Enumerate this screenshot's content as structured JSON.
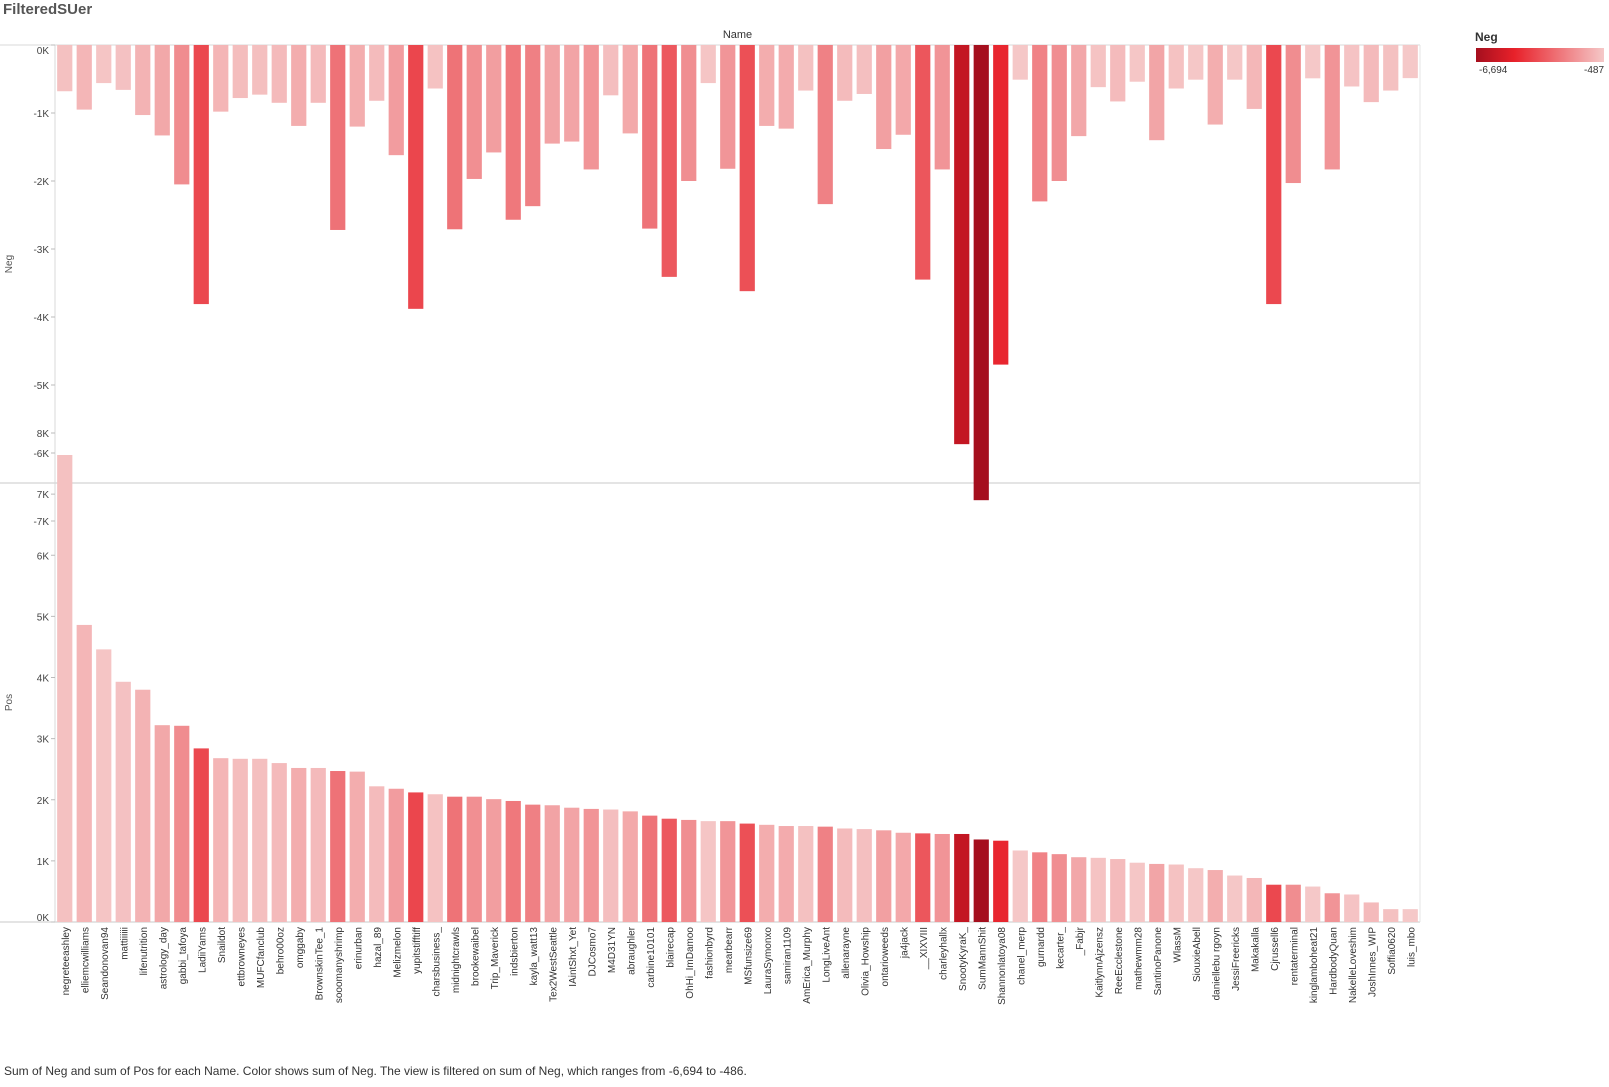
{
  "title": "FilteredSUer",
  "caption": "Sum of Neg and sum of Pos for each Name.  Color shows sum of Neg. The view is filtered on sum of Neg, which ranges from -6,694 to -486.",
  "legend": {
    "title": "Neg",
    "min_label": "-6,694",
    "max_label": "-487",
    "color_min": "#a50f1e",
    "color_mid": "#e8212a",
    "color_max": "#f5c8c8"
  },
  "chart_data": {
    "type": "bar",
    "column_header": "Name",
    "color_by": "Neg",
    "color_range": [
      -6694,
      -487
    ],
    "categories": [
      "negreteeashley",
      "elliemcwilliams",
      "Seandonovan94",
      "mattiiiiii",
      "lifenutrition",
      "astrology_day",
      "gabbi_tafoya",
      "LadiiYams",
      "Snaildot",
      "ettbrowneyes",
      "MUFCfanclub",
      "behro00oz",
      "omggaby",
      "BrownskinTee_1",
      "sooomanyshrimp",
      "erinurban",
      "hazal_89",
      "Melizmelon",
      "yupitstifftiff",
      "charsbusiness_",
      "midnightcrawls",
      "brookewaibel",
      "Trip_Maverick",
      "indsbierton",
      "kayla_watt13",
      "Tex2WestSeattle",
      "IAintShxt_Yet",
      "DJCosmo7",
      "M4D31YN",
      "abraughler",
      "carbine10101",
      "blairecap",
      "OhHi_ImDamoo",
      "fashionbyrd",
      "mearbearr",
      "MSfunsize69",
      "LauraSymonxo",
      "samiran1109",
      "AmErica_Murphy",
      "LongLiveAnt",
      "allenarayne",
      "Olivia_Howship",
      "ontarioweeds",
      "ja4jack",
      "__XIXVIII",
      "charleyhallx",
      "SnootyKyraK_",
      "SumMannShit",
      "Shannonlatoya08",
      "chanel_merp",
      "gurnardd",
      "kecarter_",
      "_Fabjr",
      "KaitlynnAjzensz",
      "ReeEcclestone",
      "mathewmm28",
      "SantinoPanone",
      "WlassM",
      "SiouxieAbell",
      "daniellebu rgoyn",
      "JessiFreericks",
      "Makakalla",
      "Cjrussell6",
      "rentaterminal",
      "kinglamboheat21",
      "HardbodyQuan",
      "NakelleLoveshim",
      "JoshInnes_WIP",
      "Soffia0620",
      "luis_mbo"
    ],
    "series": [
      {
        "name": "Neg",
        "values": [
          -680,
          -950,
          -560,
          -660,
          -1030,
          -1330,
          -2050,
          -3810,
          -980,
          -780,
          -730,
          -850,
          -1190,
          -850,
          -2720,
          -1200,
          -820,
          -1620,
          -3880,
          -640,
          -2710,
          -1970,
          -1580,
          -2570,
          -2370,
          -1450,
          -1420,
          -1830,
          -740,
          -1300,
          -2700,
          -3410,
          -2000,
          -560,
          -1820,
          -3620,
          -1190,
          -1230,
          -670,
          -2340,
          -820,
          -720,
          -1530,
          -1320,
          -3450,
          -1830,
          -5870,
          -6694,
          -4700,
          -510,
          -2300,
          -2000,
          -1340,
          -620,
          -830,
          -540,
          -1400,
          -640,
          -510,
          -1170,
          -510,
          -940,
          -3810,
          -2030,
          -490,
          -1830,
          -610,
          -840,
          -670,
          -487
        ]
      },
      {
        "name": "Pos",
        "values": [
          7640,
          4860,
          4460,
          3930,
          3800,
          3220,
          3210,
          2840,
          2680,
          2670,
          2670,
          2600,
          2520,
          2520,
          2470,
          2460,
          2220,
          2180,
          2120,
          2090,
          2050,
          2050,
          2010,
          1980,
          1920,
          1910,
          1870,
          1850,
          1840,
          1810,
          1740,
          1690,
          1670,
          1650,
          1650,
          1610,
          1590,
          1570,
          1570,
          1560,
          1530,
          1520,
          1500,
          1460,
          1450,
          1440,
          1440,
          1350,
          1330,
          1170,
          1140,
          1110,
          1060,
          1050,
          1030,
          970,
          950,
          940,
          880,
          850,
          760,
          720,
          610,
          610,
          580,
          470,
          450,
          320,
          210,
          210
        ]
      }
    ],
    "panels": [
      {
        "measure": "Neg",
        "ylabel": "Neg",
        "ylim": [
          -7000,
          0
        ],
        "ticks": [
          0,
          -1000,
          -2000,
          -3000,
          -4000,
          -5000,
          -6000,
          -7000
        ],
        "tick_labels": [
          "0K",
          "-1K",
          "-2K",
          "-3K",
          "-4K",
          "-5K",
          "-6K",
          "-7K"
        ]
      },
      {
        "measure": "Pos",
        "ylabel": "Pos",
        "ylim": [
          0,
          8000
        ],
        "ticks": [
          0,
          1000,
          2000,
          3000,
          4000,
          5000,
          6000,
          7000,
          8000
        ],
        "tick_labels": [
          "0K",
          "1K",
          "2K",
          "3K",
          "4K",
          "5K",
          "6K",
          "7K",
          "8K"
        ]
      }
    ]
  }
}
